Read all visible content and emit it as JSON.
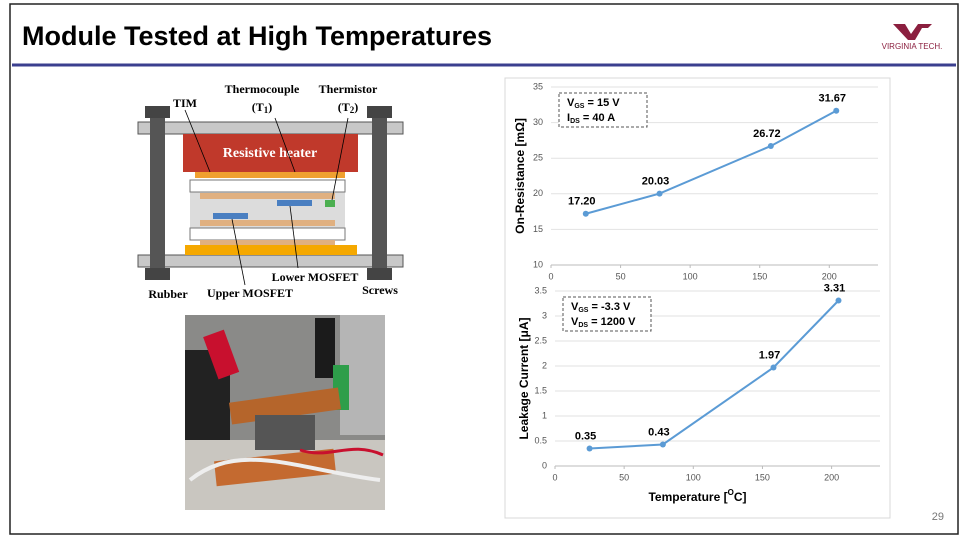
{
  "header": {
    "title": "Module Tested at High Temperatures",
    "logo": "VIRGINIA TECH.",
    "page": "29"
  },
  "diagram": {
    "thermocouple": "Thermocouple",
    "t1": [
      "(T",
      "1",
      ")"
    ],
    "thermistor": "Thermistor",
    "t2": [
      "(T",
      "2",
      ")"
    ],
    "tim": "TIM",
    "heater": "Resistive heater",
    "lower": "Lower MOSFET",
    "upper": "Upper MOSFET",
    "rubber": "Rubber",
    "screws": "Screws"
  },
  "chart_data": [
    {
      "type": "line",
      "ylabel": "On-Resistance [mΩ]",
      "annotation": [
        [
          "V",
          "GS",
          " = 15 V"
        ],
        [
          "I",
          "DS",
          " = 40 A"
        ]
      ],
      "x": [
        25,
        78,
        158,
        205
      ],
      "values": [
        17.2,
        20.03,
        26.72,
        31.67
      ],
      "value_labels": [
        "17.20",
        "20.03",
        "26.72",
        "31.67"
      ],
      "color": "#5b9bd5",
      "xlim": [
        0,
        235
      ],
      "xticks": [
        0,
        50,
        100,
        150,
        200
      ],
      "ylim": [
        10,
        35
      ],
      "yticks": [
        10,
        15,
        20,
        25,
        30,
        35
      ],
      "grid": true
    },
    {
      "type": "line",
      "ylabel": "Leakage Current [μA]",
      "xlabel": [
        "Temperature [",
        "O",
        "C]"
      ],
      "annotation": [
        [
          "V",
          "GS",
          " = -3.3 V"
        ],
        [
          "V",
          "DS",
          " = 1200 V"
        ]
      ],
      "x": [
        25,
        78,
        158,
        205
      ],
      "values": [
        0.35,
        0.43,
        1.97,
        3.31
      ],
      "color": "#5b9bd5",
      "xlim": [
        0,
        235
      ],
      "xticks": [
        0,
        50,
        100,
        150,
        200
      ],
      "ylim": [
        0,
        3.5
      ],
      "yticks": [
        0,
        0.5,
        1,
        1.5,
        2,
        2.5,
        3,
        3.5
      ],
      "grid": true
    }
  ]
}
